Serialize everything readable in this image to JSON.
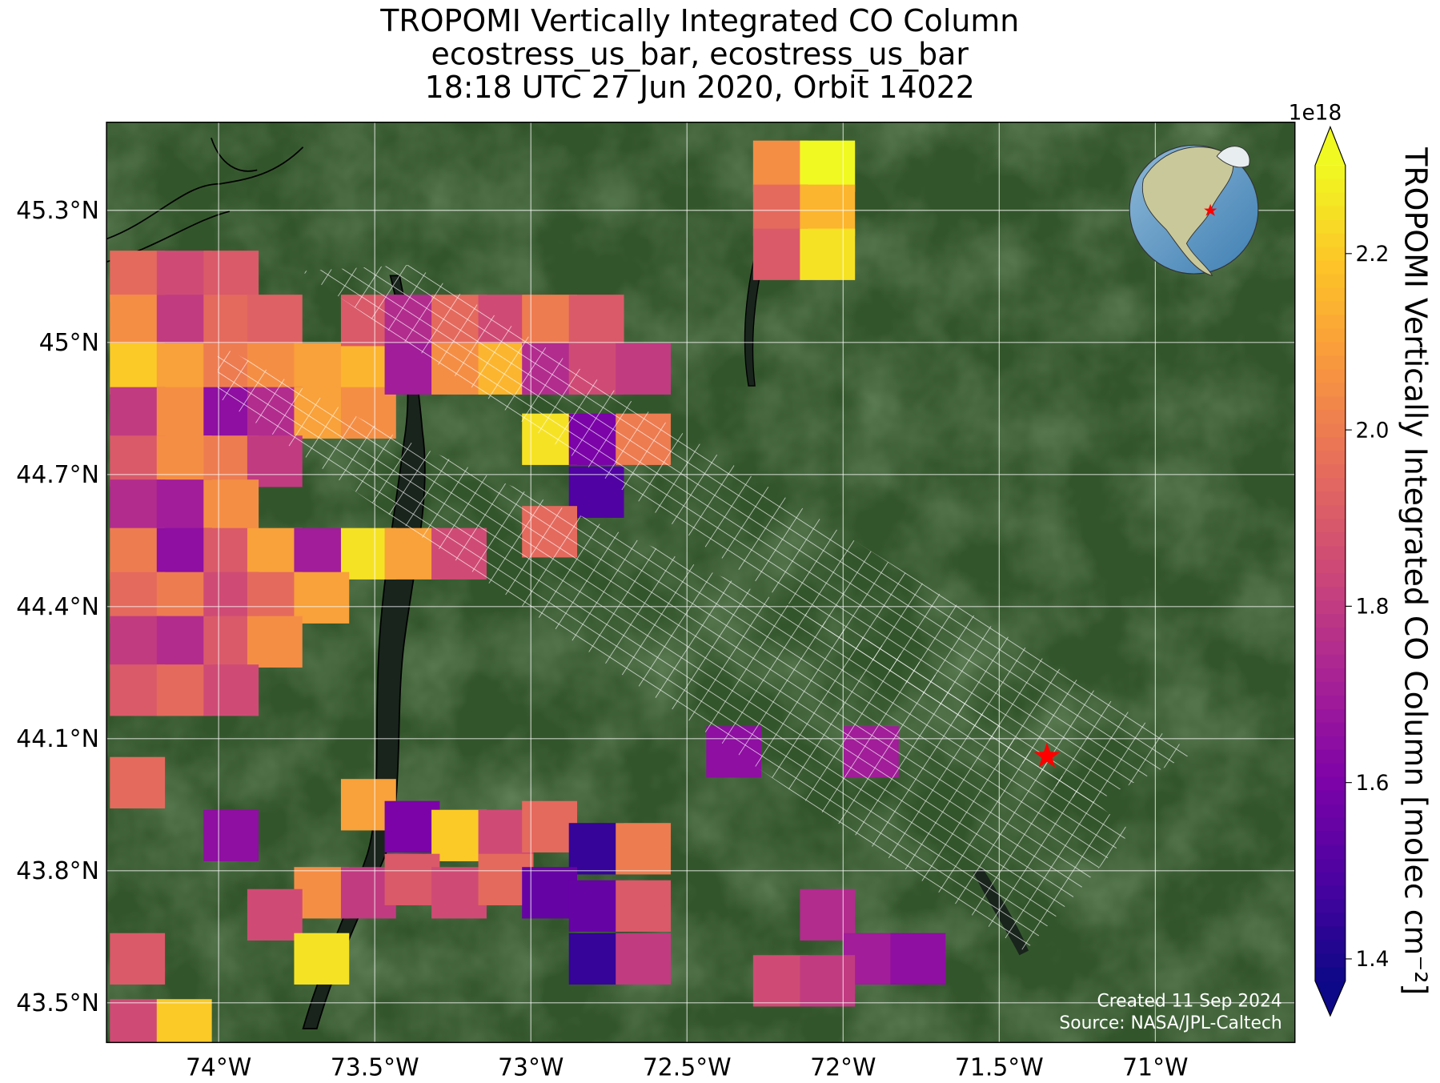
{
  "chart_data": {
    "type": "map",
    "title_lines": [
      "TROPOMI Vertically Integrated CO Column",
      "ecostress_us_bar, ecostress_us_bar",
      "18:18 UTC 27 Jun 2020, Orbit 14022"
    ],
    "xlim": [
      -74.359,
      -70.553
    ],
    "ylim": [
      43.41,
      45.5
    ],
    "xticks": [
      {
        "value": -74,
        "label": "74°W"
      },
      {
        "value": -73.5,
        "label": "73.5°W"
      },
      {
        "value": -73,
        "label": "73°W"
      },
      {
        "value": -72.5,
        "label": "72.5°W"
      },
      {
        "value": -72,
        "label": "72°W"
      },
      {
        "value": -71.5,
        "label": "71.5°W"
      },
      {
        "value": -71,
        "label": "71°W"
      }
    ],
    "yticks": [
      {
        "value": 43.5,
        "label": "43.5°N"
      },
      {
        "value": 43.8,
        "label": "43.8°N"
      },
      {
        "value": 44.1,
        "label": "44.1°N"
      },
      {
        "value": 44.4,
        "label": "44.4°N"
      },
      {
        "value": 44.7,
        "label": "44.7°N"
      },
      {
        "value": 45,
        "label": "45°N"
      },
      {
        "value": 45.3,
        "label": "45.3°N"
      }
    ],
    "grid": true,
    "colorbar": {
      "label": "TROPOMI Vertically Integrated CO Column [molec cm⁻²]",
      "offset_label": "1e18",
      "cmap": "plasma",
      "clim": [
        1.375,
        2.3
      ],
      "ticks": [
        1.4,
        1.6,
        1.8,
        {
          "value": 2,
          "label": "2.0"
        },
        2.2
      ]
    },
    "target": {
      "lon": -71.347,
      "lat": 44.06
    },
    "credits": [
      "Created 11 Sep 2024",
      "Source: NASA/JPL-Caltech"
    ],
    "pixels": [
      [
        -74.26,
        45.15,
        1.95
      ],
      [
        -74.11,
        45.15,
        1.85
      ],
      [
        -73.96,
        45.15,
        1.9
      ],
      [
        -74.26,
        45.05,
        2.05
      ],
      [
        -74.11,
        45.05,
        1.8
      ],
      [
        -73.96,
        45.05,
        1.95
      ],
      [
        -73.82,
        45.05,
        1.92
      ],
      [
        -74.26,
        44.94,
        2.2
      ],
      [
        -74.11,
        44.94,
        2.1
      ],
      [
        -73.96,
        44.94,
        2.0
      ],
      [
        -73.82,
        44.94,
        2.05
      ],
      [
        -73.67,
        44.94,
        2.1
      ],
      [
        -73.52,
        44.94,
        2.15
      ],
      [
        -74.26,
        44.84,
        1.8
      ],
      [
        -74.11,
        44.84,
        2.05
      ],
      [
        -73.96,
        44.84,
        1.65
      ],
      [
        -73.82,
        44.84,
        1.75
      ],
      [
        -73.67,
        44.84,
        2.1
      ],
      [
        -73.52,
        44.84,
        2.05
      ],
      [
        -74.26,
        44.73,
        1.9
      ],
      [
        -74.11,
        44.73,
        2.05
      ],
      [
        -73.96,
        44.73,
        2.0
      ],
      [
        -73.82,
        44.73,
        1.8
      ],
      [
        -74.26,
        44.63,
        1.75
      ],
      [
        -74.11,
        44.63,
        1.7
      ],
      [
        -73.96,
        44.63,
        2.05
      ],
      [
        -74.26,
        44.52,
        2.0
      ],
      [
        -74.11,
        44.52,
        1.65
      ],
      [
        -73.96,
        44.52,
        1.9
      ],
      [
        -73.82,
        44.52,
        2.1
      ],
      [
        -73.67,
        44.52,
        1.7
      ],
      [
        -73.52,
        44.52,
        2.25
      ],
      [
        -73.38,
        44.52,
        2.1
      ],
      [
        -73.23,
        44.52,
        1.85
      ],
      [
        -74.26,
        44.42,
        1.95
      ],
      [
        -74.11,
        44.42,
        2.0
      ],
      [
        -73.96,
        44.42,
        1.85
      ],
      [
        -73.82,
        44.42,
        1.95
      ],
      [
        -73.67,
        44.42,
        2.1
      ],
      [
        -74.26,
        44.32,
        1.8
      ],
      [
        -74.11,
        44.32,
        1.75
      ],
      [
        -73.96,
        44.32,
        1.9
      ],
      [
        -73.82,
        44.32,
        2.05
      ],
      [
        -74.26,
        44.21,
        1.9
      ],
      [
        -74.11,
        44.21,
        1.95
      ],
      [
        -73.96,
        44.21,
        1.85
      ],
      [
        -73.52,
        45.05,
        1.9
      ],
      [
        -73.38,
        45.05,
        1.75
      ],
      [
        -73.23,
        45.05,
        1.95
      ],
      [
        -73.08,
        45.05,
        1.85
      ],
      [
        -72.94,
        45.05,
        2.0
      ],
      [
        -72.79,
        45.05,
        1.9
      ],
      [
        -73.38,
        44.94,
        1.7
      ],
      [
        -73.23,
        44.94,
        2.05
      ],
      [
        -73.08,
        44.94,
        2.15
      ],
      [
        -72.94,
        44.94,
        1.75
      ],
      [
        -72.79,
        44.94,
        1.85
      ],
      [
        -72.64,
        44.94,
        1.8
      ],
      [
        -72.94,
        44.78,
        2.25
      ],
      [
        -72.79,
        44.78,
        1.6
      ],
      [
        -72.64,
        44.78,
        2.0
      ],
      [
        -72.79,
        44.66,
        1.5
      ],
      [
        -72.94,
        44.57,
        1.95
      ],
      [
        -72.2,
        45.4,
        2.05
      ],
      [
        -72.05,
        45.4,
        2.3
      ],
      [
        -72.2,
        45.3,
        1.95
      ],
      [
        -72.05,
        45.3,
        2.15
      ],
      [
        -72.2,
        45.2,
        1.9
      ],
      [
        -72.05,
        45.2,
        2.25
      ],
      [
        -73.52,
        43.95,
        2.1
      ],
      [
        -73.38,
        43.9,
        1.6
      ],
      [
        -73.23,
        43.88,
        2.2
      ],
      [
        -73.08,
        43.88,
        1.85
      ],
      [
        -72.94,
        43.9,
        1.95
      ],
      [
        -72.79,
        43.85,
        1.45
      ],
      [
        -72.64,
        43.85,
        2.0
      ],
      [
        -73.67,
        43.75,
        2.05
      ],
      [
        -73.52,
        43.75,
        1.8
      ],
      [
        -73.38,
        43.78,
        1.9
      ],
      [
        -73.23,
        43.75,
        1.85
      ],
      [
        -73.08,
        43.78,
        1.95
      ],
      [
        -72.94,
        43.75,
        1.55
      ],
      [
        -72.79,
        43.72,
        1.55
      ],
      [
        -72.64,
        43.72,
        1.9
      ],
      [
        -72.79,
        43.6,
        1.45
      ],
      [
        -72.64,
        43.6,
        1.8
      ],
      [
        -73.82,
        43.7,
        1.85
      ],
      [
        -73.67,
        43.6,
        2.25
      ],
      [
        -73.96,
        43.88,
        1.65
      ],
      [
        -74.26,
        44.0,
        1.95
      ],
      [
        -74.26,
        43.6,
        1.9
      ],
      [
        -74.26,
        43.45,
        1.85
      ],
      [
        -74.11,
        43.45,
        2.2
      ],
      [
        -72.35,
        44.07,
        1.65
      ],
      [
        -71.91,
        44.07,
        1.7
      ],
      [
        -72.05,
        43.7,
        1.75
      ],
      [
        -71.91,
        43.6,
        1.7
      ],
      [
        -71.76,
        43.6,
        1.65
      ],
      [
        -72.2,
        43.55,
        1.85
      ],
      [
        -72.05,
        43.55,
        1.8
      ]
    ]
  }
}
